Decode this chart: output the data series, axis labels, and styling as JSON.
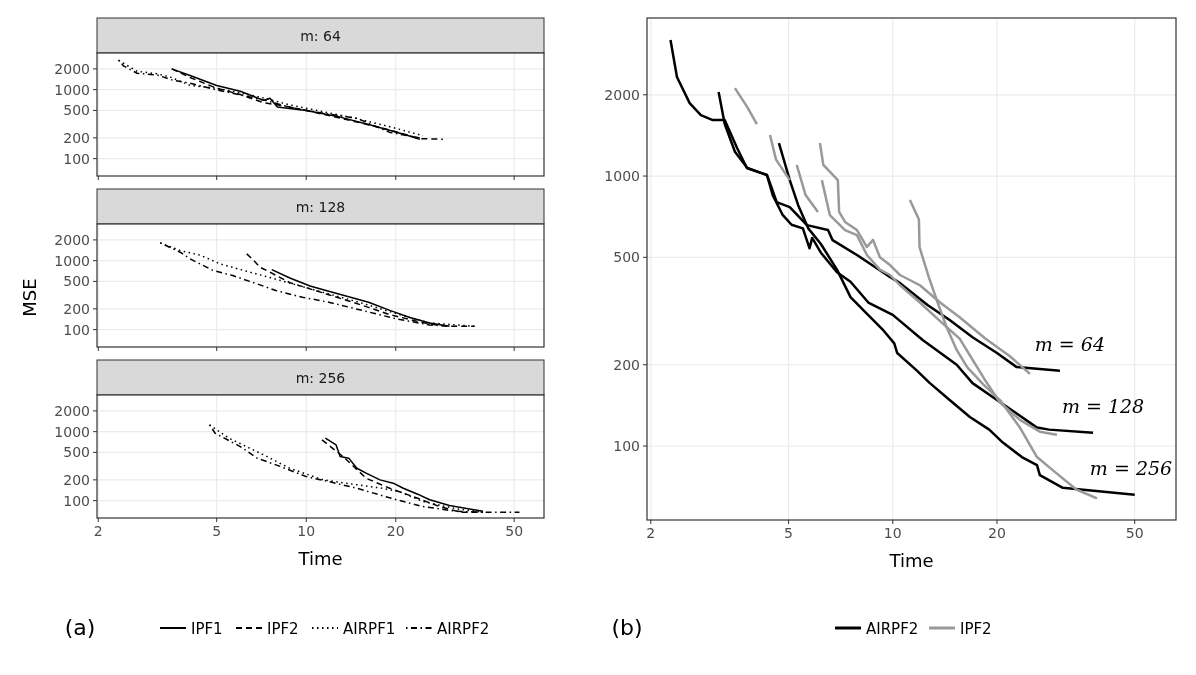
{
  "chart_data": [
    {
      "type": "line",
      "title": "m: 64",
      "log": "xy",
      "grid": true,
      "tick_labels": "y",
      "xlim": [
        1.98,
        63
      ],
      "ylim": [
        56,
        3400
      ],
      "xticks": [
        2,
        5,
        10,
        20,
        50
      ],
      "yticks": [
        100,
        200,
        500,
        1000,
        2000
      ],
      "legend": false,
      "series": [
        {
          "color": "#000000",
          "line_style": "solid",
          "x": [
            3.53,
            4.07,
            5.0,
            6.0,
            7.18,
            7.55,
            8.0,
            10.0,
            13.0,
            16.8,
            21.7,
            24.1
          ],
          "values": [
            2000,
            1600,
            1150,
            950,
            700,
            752,
            560,
            500,
            400,
            300,
            220,
            190
          ]
        },
        {
          "color": "#000000",
          "line_style": "dashed",
          "x": [
            3.53,
            4.07,
            5.0,
            6.0,
            7.18,
            8.81,
            11.4,
            14.8,
            19.1,
            24.1,
            28.8
          ],
          "values": [
            2000,
            1500,
            1050,
            850,
            650,
            560,
            440,
            340,
            260,
            195,
            191
          ]
        },
        {
          "color": "#000000",
          "line_style": "dotted",
          "x": [
            2.34,
            2.7,
            3.15,
            3.53,
            4.07,
            5.0,
            6.0,
            7.18,
            8.81,
            11.4,
            14.8,
            19.1,
            24.7
          ],
          "values": [
            2650,
            1850,
            1700,
            1500,
            1150,
            1050,
            900,
            760,
            600,
            480,
            380,
            290,
            215
          ]
        },
        {
          "color": "#000000",
          "line_style": "dashdot",
          "x": [
            2.34,
            2.43,
            2.7,
            3.15,
            3.53,
            4.07,
            5.0,
            6.0,
            7.18,
            8.81,
            11.4,
            14.8,
            19.1,
            24.1
          ],
          "values": [
            2700,
            2210,
            1730,
            1637,
            1386,
            1239,
            993,
            840,
            711,
            556,
            455,
            385,
            240,
            200
          ]
        }
      ]
    },
    {
      "type": "line",
      "title": "m: 128",
      "ylabel": "MSE",
      "log": "xy",
      "grid": true,
      "tick_labels": "y",
      "xlim": [
        1.98,
        63
      ],
      "ylim": [
        56,
        3400
      ],
      "xticks": [
        2,
        5,
        10,
        20,
        50
      ],
      "yticks": [
        100,
        200,
        500,
        1000,
        2000
      ],
      "legend": false,
      "series": [
        {
          "color": "#000000",
          "line_style": "solid",
          "x": [
            7.66,
            8.81,
            10.3,
            11.9,
            13.9,
            16.2,
            19.1,
            22.3,
            26.0,
            30.3
          ],
          "values": [
            743,
            560,
            430,
            360,
            300,
            250,
            190,
            150,
            125,
            112
          ]
        },
        {
          "color": "#000000",
          "line_style": "dashed",
          "x": [
            6.31,
            6.6,
            7.0,
            7.66,
            8.81,
            10.3,
            11.9,
            13.9,
            16.2,
            19.1,
            22.3,
            26.0,
            30.3,
            36.8
          ],
          "values": [
            1254,
            1050,
            800,
            660,
            480,
            390,
            320,
            260,
            210,
            165,
            140,
            120,
            112,
            112
          ]
        },
        {
          "color": "#000000",
          "line_style": "dotted",
          "x": [
            3.23,
            3.77,
            4.4,
            5.13,
            6.31,
            7.66,
            9.7,
            11.9,
            15.5,
            20.1,
            26.0,
            36.8
          ],
          "values": [
            1810,
            1400,
            1200,
            900,
            700,
            560,
            420,
            330,
            240,
            170,
            125,
            112
          ]
        },
        {
          "color": "#000000",
          "line_style": "dashdot",
          "x": [
            3.23,
            3.77,
            4.07,
            4.87,
            5.66,
            6.84,
            7.9,
            9.7,
            11.9,
            15.5,
            20.1,
            26.0,
            30.3
          ],
          "values": [
            1810,
            1325,
            1061,
            719,
            608,
            460,
            369,
            295,
            250,
            189,
            143,
            117,
            112
          ]
        }
      ]
    },
    {
      "type": "line",
      "title": "m: 256",
      "xlabel": "Time",
      "log": "xy",
      "grid": true,
      "xlim": [
        1.98,
        63
      ],
      "ylim": [
        56,
        3400
      ],
      "xticks": [
        2,
        5,
        10,
        20,
        50
      ],
      "yticks": [
        100,
        200,
        500,
        1000,
        2000
      ],
      "legend": "bottom",
      "annotations": [
        "(a)"
      ],
      "series": [
        {
          "name": "IPF1",
          "color": "#000000",
          "line_style": "solid",
          "x": [
            11.6,
            12.6,
            13.0,
            13.9,
            14.8,
            15.9,
            17.7,
            19.6,
            21.2,
            23.7,
            26.0,
            30.3,
            39.3
          ],
          "values": [
            803,
            643,
            436,
            413,
            295,
            250,
            200,
            179,
            151,
            124,
            103,
            85,
            70
          ]
        },
        {
          "name": "IPF2",
          "color": "#000000",
          "line_style": "dashed",
          "x": [
            11.3,
            13.3,
            15.9,
            19.1,
            23.7,
            28.1,
            33.0,
            39.3
          ],
          "values": [
            760,
            436,
            211,
            151,
            108,
            82,
            68,
            68
          ]
        },
        {
          "name": "AIRPF1",
          "color": "#000000",
          "line_style": "dotted",
          "x": [
            4.73,
            5.5,
            7.2,
            8.8,
            11.4,
            14.8,
            18.0,
            20.6,
            24.7,
            32.0,
            39.3
          ],
          "values": [
            1254,
            803,
            460,
            295,
            200,
            170,
            151,
            135,
            97,
            76,
            68
          ]
        },
        {
          "name": "AIRPF2",
          "color": "#000000",
          "line_style": "dashdot",
          "x": [
            4.73,
            4.94,
            6.0,
            6.84,
            8.2,
            10.0,
            11.9,
            14.8,
            20.1,
            24.7,
            32.0,
            39.3,
            52.1
          ],
          "values": [
            1254,
            949,
            608,
            413,
            312,
            223,
            189,
            151,
            103,
            82,
            70,
            68,
            68
          ]
        }
      ]
    },
    {
      "type": "line",
      "xlabel": "Time",
      "log": "xy",
      "grid": true,
      "xlim": [
        1.95,
        65.8
      ],
      "ylim": [
        53.2,
        3850
      ],
      "xticks": [
        2,
        5,
        10,
        20,
        50
      ],
      "yticks": [
        100,
        200,
        500,
        1000,
        2000
      ],
      "legend": "bottom",
      "annotations": [
        "(b)",
        {
          "text": "m = 64",
          "x": 30.4,
          "y": 190
        },
        {
          "text": "m = 128",
          "x": 37.9,
          "y": 112
        },
        {
          "text": "m = 256",
          "x": 50.0,
          "y": 66
        }
      ],
      "series": [
        {
          "name": "AIRPF2",
          "color": "#000000",
          "x": [
            2.28,
            2.38,
            2.59,
            2.79,
            3.02,
            3.27,
            3.55,
            3.79,
            4.33,
            4.47,
            4.62,
            5.04,
            5.65,
            6.5,
            6.7,
            7.88,
            9.81,
            10.5,
            12.6,
            14.6,
            17.0,
            20.0,
            22.8,
            30.4
          ],
          "values": [
            3190,
            2327,
            1863,
            1682,
            1612,
            1612,
            1270,
            1071,
            1009,
            903,
            801,
            767,
            658,
            631,
            579,
            510,
            423,
            401,
            333,
            293,
            253,
            221,
            196,
            190
          ]
        },
        {
          "color": "#000000",
          "x": [
            3.14,
            3.27,
            3.5,
            3.8,
            4.33,
            4.5,
            4.8,
            5.1,
            5.5,
            5.75,
            5.85,
            6.2,
            6.9,
            7.55,
            8.5,
            10.0,
            12.2,
            15.3,
            17.0,
            20.0,
            22.8,
            26.1,
            28.3,
            37.9
          ],
          "values": [
            2047,
            1558,
            1230,
            1071,
            1009,
            850,
            720,
            660,
            640,
            540,
            590,
            520,
            440,
            406,
            340,
            306,
            247,
            200,
            171,
            148,
            132,
            117,
            115,
            112
          ]
        },
        {
          "color": "#000000",
          "x": [
            4.69,
            5.04,
            5.33,
            5.7,
            6.2,
            6.9,
            7.55,
            8.4,
            9.4,
            10.1,
            10.3,
            11.7,
            12.8,
            14.6,
            16.7,
            19.0,
            20.8,
            23.6,
            26.1,
            26.6,
            31.0,
            50.0
          ],
          "values": [
            1325,
            966,
            780,
            640,
            560,
            450,
            356,
            310,
            268,
            240,
            221,
            191,
            171,
            148,
            128,
            115,
            103,
            91,
            85,
            78,
            70,
            66
          ]
        },
        {
          "name": "IPF2",
          "color": "#999999",
          "x": [
            3.5,
            3.8,
            4.05,
            4.5,
            5.28,
            5.6,
            6.08,
            6.1,
            6.16,
            6.3,
            6.94,
            7.0,
            7.28,
            7.88,
            8.42,
            8.77,
            9.18,
            9.82,
            10.49,
            11.98,
            13.7,
            15.6,
            18.5,
            21.8,
            24.9
          ],
          "values": [
            2118,
            1800,
            1558,
            null,
            1099,
            850,
            736,
            null,
            1325,
            1100,
            966,
            736,
            676,
            631,
            546,
            580,
            500,
            468,
            430,
            394,
            340,
            300,
            250,
            215,
            185
          ]
        },
        {
          "color": "#999999",
          "x": [
            4.42,
            4.6,
            5.04,
            5.6,
            6.24,
            6.58,
            7.28,
            7.88,
            8.42,
            9.18,
            9.82,
            10.49,
            11.98,
            13.7,
            15.6,
            18.5,
            20.4,
            23.3,
            26.6,
            29.8
          ],
          "values": [
            1419,
            1150,
            966,
            null,
            966,
            717,
            631,
            604,
            510,
            450,
            430,
            394,
            340,
            290,
            250,
            175,
            145,
            125,
            113,
            110
          ]
        },
        {
          "color": "#999999",
          "x": [
            11.21,
            11.9,
            11.95,
            12.7,
            13.5,
            14.3,
            15.3,
            16.4,
            18.2,
            20.4,
            23.3,
            26.1,
            29.8,
            33.9,
            38.9
          ],
          "values": [
            815,
            690,
            545,
            423,
            338,
            276,
            227,
            196,
            170,
            148,
            117,
            91,
            79,
            69,
            64
          ]
        }
      ]
    }
  ]
}
